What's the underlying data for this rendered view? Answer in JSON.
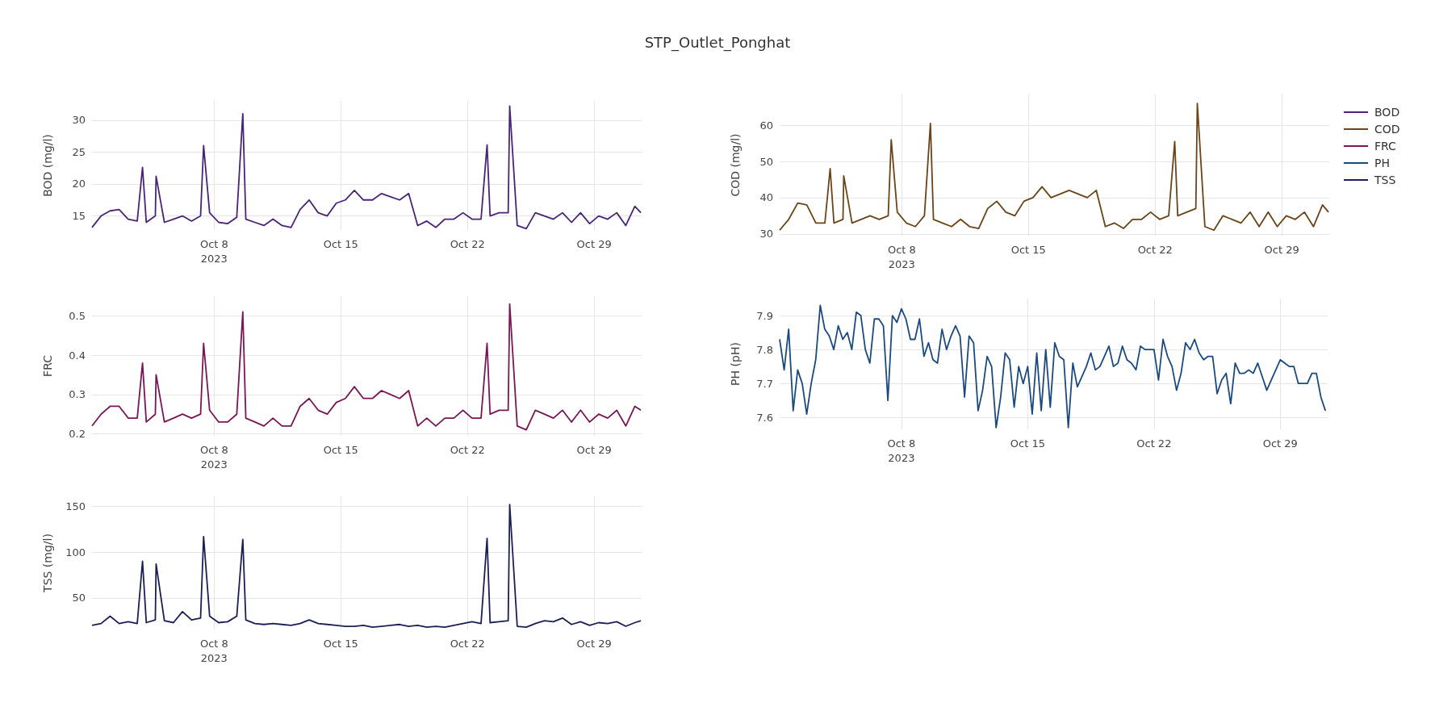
{
  "chart_data": [
    {
      "type": "line",
      "title": "STP_Outlet_Ponghat",
      "ylabel": "BOD (mg/l)",
      "grid": true,
      "legend": "right",
      "marker": "none",
      "x": [
        "2023-10-01T06:00",
        "2023-10-01T18:00",
        "2023-10-02T06:00",
        "2023-10-02T18:00",
        "2023-10-03T06:00",
        "2023-10-03T18:00",
        "2023-10-04T01:00",
        "2023-10-04T06:00",
        "2023-10-04T18:00",
        "2023-10-04T19:00",
        "2023-10-05T06:00",
        "2023-10-05T18:00",
        "2023-10-06T06:00",
        "2023-10-06T18:00",
        "2023-10-07T06:00",
        "2023-10-07T10:00",
        "2023-10-07T18:00",
        "2023-10-08T06:00",
        "2023-10-08T18:00",
        "2023-10-09T06:00",
        "2023-10-09T14:00",
        "2023-10-09T18:00",
        "2023-10-10T06:00",
        "2023-10-10T18:00",
        "2023-10-11T06:00",
        "2023-10-11T18:00",
        "2023-10-12T06:00",
        "2023-10-12T18:00",
        "2023-10-13T06:00",
        "2023-10-13T18:00",
        "2023-10-14T06:00",
        "2023-10-14T18:00",
        "2023-10-15T06:00",
        "2023-10-15T18:00",
        "2023-10-16T06:00",
        "2023-10-16T18:00",
        "2023-10-17T06:00",
        "2023-10-17T18:00",
        "2023-10-18T06:00",
        "2023-10-18T18:00",
        "2023-10-19T06:00",
        "2023-10-19T18:00",
        "2023-10-20T06:00",
        "2023-10-20T18:00",
        "2023-10-21T06:00",
        "2023-10-21T18:00",
        "2023-10-22T06:00",
        "2023-10-22T18:00",
        "2023-10-23T02:00",
        "2023-10-23T06:00",
        "2023-10-23T18:00",
        "2023-10-24T06:00",
        "2023-10-24T08:00",
        "2023-10-24T18:00",
        "2023-10-25T06:00",
        "2023-10-25T18:00",
        "2023-10-26T06:00",
        "2023-10-26T18:00",
        "2023-10-27T06:00",
        "2023-10-27T18:00",
        "2023-10-28T06:00",
        "2023-10-28T18:00",
        "2023-10-29T06:00",
        "2023-10-29T18:00",
        "2023-10-30T06:00",
        "2023-10-30T18:00",
        "2023-10-31T06:00",
        "2023-10-31T14:00"
      ],
      "xlim": [
        "2023-10-01T06:00",
        "2023-10-31T15:00"
      ],
      "xticks": [
        {
          "value": "2023-10-08",
          "label": "Oct 8\n2023"
        },
        {
          "value": "2023-10-15",
          "label": "Oct 15"
        },
        {
          "value": "2023-10-22",
          "label": "Oct 22"
        },
        {
          "value": "2023-10-29",
          "label": "Oct 29"
        }
      ],
      "ylim": [
        12.8,
        33
      ],
      "yticks": [
        15,
        20,
        25,
        30
      ],
      "series": [
        {
          "name": "BOD",
          "color": "#4a2478",
          "values": [
            13.2,
            15.0,
            15.8,
            16.0,
            14.5,
            14.2,
            22.6,
            14.0,
            15.0,
            21.2,
            14.0,
            14.5,
            15.0,
            14.2,
            15.0,
            26.0,
            15.5,
            14.0,
            13.8,
            14.8,
            31.0,
            14.5,
            14.0,
            13.5,
            14.5,
            13.5,
            13.2,
            16.0,
            17.5,
            15.5,
            15.0,
            17.0,
            17.5,
            19.0,
            17.5,
            17.5,
            18.5,
            18.0,
            17.5,
            18.5,
            13.5,
            14.2,
            13.2,
            14.5,
            14.5,
            15.5,
            14.5,
            14.5,
            26.1,
            15.0,
            15.5,
            15.5,
            32.2,
            13.5,
            13.0,
            15.5,
            15.0,
            14.5,
            15.5,
            14.0,
            15.5,
            13.8,
            15.0,
            14.5,
            15.5,
            13.5,
            16.5,
            15.5
          ]
        }
      ]
    },
    {
      "type": "line",
      "ylabel": "COD (mg/l)",
      "grid": true,
      "legend": "right",
      "marker": "none",
      "x": [
        "2023-10-01T06:00",
        "2023-10-01T18:00",
        "2023-10-02T06:00",
        "2023-10-02T18:00",
        "2023-10-03T06:00",
        "2023-10-03T18:00",
        "2023-10-04T01:00",
        "2023-10-04T06:00",
        "2023-10-04T18:00",
        "2023-10-04T19:00",
        "2023-10-05T06:00",
        "2023-10-05T18:00",
        "2023-10-06T06:00",
        "2023-10-06T18:00",
        "2023-10-07T06:00",
        "2023-10-07T10:00",
        "2023-10-07T18:00",
        "2023-10-08T06:00",
        "2023-10-08T18:00",
        "2023-10-09T06:00",
        "2023-10-09T14:00",
        "2023-10-09T18:00",
        "2023-10-10T06:00",
        "2023-10-10T18:00",
        "2023-10-11T06:00",
        "2023-10-11T18:00",
        "2023-10-12T06:00",
        "2023-10-12T18:00",
        "2023-10-13T06:00",
        "2023-10-13T18:00",
        "2023-10-14T06:00",
        "2023-10-14T18:00",
        "2023-10-15T06:00",
        "2023-10-15T18:00",
        "2023-10-16T06:00",
        "2023-10-16T18:00",
        "2023-10-17T06:00",
        "2023-10-17T18:00",
        "2023-10-18T06:00",
        "2023-10-18T18:00",
        "2023-10-19T06:00",
        "2023-10-19T18:00",
        "2023-10-20T06:00",
        "2023-10-20T18:00",
        "2023-10-21T06:00",
        "2023-10-21T18:00",
        "2023-10-22T06:00",
        "2023-10-22T18:00",
        "2023-10-23T02:00",
        "2023-10-23T06:00",
        "2023-10-23T18:00",
        "2023-10-24T06:00",
        "2023-10-24T08:00",
        "2023-10-24T18:00",
        "2023-10-25T06:00",
        "2023-10-25T18:00",
        "2023-10-26T06:00",
        "2023-10-26T18:00",
        "2023-10-27T06:00",
        "2023-10-27T18:00",
        "2023-10-28T06:00",
        "2023-10-28T18:00",
        "2023-10-29T06:00",
        "2023-10-29T18:00",
        "2023-10-30T06:00",
        "2023-10-30T18:00",
        "2023-10-31T06:00",
        "2023-10-31T14:00"
      ],
      "xlim": [
        "2023-10-01T06:00",
        "2023-10-31T15:00"
      ],
      "xticks": [
        {
          "value": "2023-10-08",
          "label": "Oct 8\n2023"
        },
        {
          "value": "2023-10-15",
          "label": "Oct 15"
        },
        {
          "value": "2023-10-22",
          "label": "Oct 22"
        },
        {
          "value": "2023-10-29",
          "label": "Oct 29"
        }
      ],
      "ylim": [
        29.5,
        68.5
      ],
      "yticks": [
        30,
        40,
        50,
        60
      ],
      "series": [
        {
          "name": "COD",
          "color": "#6b4418",
          "values": [
            31,
            34,
            38.5,
            38,
            33,
            33,
            48,
            33,
            34,
            46,
            33,
            34,
            35,
            34,
            35,
            56,
            36,
            33,
            32,
            35,
            60.5,
            34,
            33,
            32,
            34,
            32,
            31.5,
            37,
            39,
            36,
            35,
            39,
            40,
            43,
            40,
            41,
            42,
            41,
            40,
            42,
            32,
            33,
            31.5,
            34,
            34,
            36,
            34,
            35,
            55.5,
            35,
            36,
            37,
            66,
            32,
            31,
            35,
            34,
            33,
            36,
            32,
            36,
            32,
            35,
            34,
            36,
            32,
            38,
            36
          ]
        }
      ]
    },
    {
      "type": "line",
      "ylabel": "FRC",
      "grid": true,
      "legend": "right",
      "marker": "none",
      "x": [
        "2023-10-01T06:00",
        "2023-10-01T18:00",
        "2023-10-02T06:00",
        "2023-10-02T18:00",
        "2023-10-03T06:00",
        "2023-10-03T18:00",
        "2023-10-04T01:00",
        "2023-10-04T06:00",
        "2023-10-04T18:00",
        "2023-10-04T19:00",
        "2023-10-05T06:00",
        "2023-10-05T18:00",
        "2023-10-06T06:00",
        "2023-10-06T18:00",
        "2023-10-07T06:00",
        "2023-10-07T10:00",
        "2023-10-07T18:00",
        "2023-10-08T06:00",
        "2023-10-08T18:00",
        "2023-10-09T06:00",
        "2023-10-09T14:00",
        "2023-10-09T18:00",
        "2023-10-10T06:00",
        "2023-10-10T18:00",
        "2023-10-11T06:00",
        "2023-10-11T18:00",
        "2023-10-12T06:00",
        "2023-10-12T18:00",
        "2023-10-13T06:00",
        "2023-10-13T18:00",
        "2023-10-14T06:00",
        "2023-10-14T18:00",
        "2023-10-15T06:00",
        "2023-10-15T18:00",
        "2023-10-16T06:00",
        "2023-10-16T18:00",
        "2023-10-17T06:00",
        "2023-10-17T18:00",
        "2023-10-18T06:00",
        "2023-10-18T18:00",
        "2023-10-19T06:00",
        "2023-10-19T18:00",
        "2023-10-20T06:00",
        "2023-10-20T18:00",
        "2023-10-21T06:00",
        "2023-10-21T18:00",
        "2023-10-22T06:00",
        "2023-10-22T18:00",
        "2023-10-23T02:00",
        "2023-10-23T06:00",
        "2023-10-23T18:00",
        "2023-10-24T06:00",
        "2023-10-24T08:00",
        "2023-10-24T18:00",
        "2023-10-25T06:00",
        "2023-10-25T18:00",
        "2023-10-26T06:00",
        "2023-10-26T18:00",
        "2023-10-27T06:00",
        "2023-10-27T18:00",
        "2023-10-28T06:00",
        "2023-10-28T18:00",
        "2023-10-29T06:00",
        "2023-10-29T18:00",
        "2023-10-30T06:00",
        "2023-10-30T18:00",
        "2023-10-31T06:00",
        "2023-10-31T14:00"
      ],
      "xlim": [
        "2023-10-01T06:00",
        "2023-10-31T15:00"
      ],
      "xticks": [
        {
          "value": "2023-10-08",
          "label": "Oct 8\n2023"
        },
        {
          "value": "2023-10-15",
          "label": "Oct 15"
        },
        {
          "value": "2023-10-22",
          "label": "Oct 22"
        },
        {
          "value": "2023-10-29",
          "label": "Oct 29"
        }
      ],
      "ylim": [
        0.195,
        0.55
      ],
      "yticks": [
        0.2,
        0.3,
        0.4,
        0.5
      ],
      "series": [
        {
          "name": "FRC",
          "color": "#7a1656",
          "values": [
            0.22,
            0.25,
            0.27,
            0.27,
            0.24,
            0.24,
            0.38,
            0.23,
            0.25,
            0.35,
            0.23,
            0.24,
            0.25,
            0.24,
            0.25,
            0.43,
            0.26,
            0.23,
            0.23,
            0.25,
            0.51,
            0.24,
            0.23,
            0.22,
            0.24,
            0.22,
            0.22,
            0.27,
            0.29,
            0.26,
            0.25,
            0.28,
            0.29,
            0.32,
            0.29,
            0.29,
            0.31,
            0.3,
            0.29,
            0.31,
            0.22,
            0.24,
            0.22,
            0.24,
            0.24,
            0.26,
            0.24,
            0.24,
            0.43,
            0.25,
            0.26,
            0.26,
            0.53,
            0.22,
            0.21,
            0.26,
            0.25,
            0.24,
            0.26,
            0.23,
            0.26,
            0.23,
            0.25,
            0.24,
            0.26,
            0.22,
            0.27,
            0.26
          ]
        }
      ]
    },
    {
      "type": "line",
      "ylabel": "PH (pH)",
      "grid": true,
      "legend": "right",
      "marker": "none",
      "x": [
        "2023-10-01T06:00",
        "2023-10-01T12:00",
        "2023-10-01T18:00",
        "2023-10-02T00:00",
        "2023-10-02T06:00",
        "2023-10-02T12:00",
        "2023-10-02T18:00",
        "2023-10-03T00:00",
        "2023-10-03T06:00",
        "2023-10-03T12:00",
        "2023-10-03T18:00",
        "2023-10-04T00:00",
        "2023-10-04T06:00",
        "2023-10-04T12:00",
        "2023-10-04T18:00",
        "2023-10-05T00:00",
        "2023-10-05T06:00",
        "2023-10-05T12:00",
        "2023-10-05T18:00",
        "2023-10-06T00:00",
        "2023-10-06T06:00",
        "2023-10-06T12:00",
        "2023-10-06T18:00",
        "2023-10-07T00:00",
        "2023-10-07T06:00",
        "2023-10-07T12:00",
        "2023-10-07T18:00",
        "2023-10-08T00:00",
        "2023-10-08T06:00",
        "2023-10-08T12:00",
        "2023-10-08T18:00",
        "2023-10-09T00:00",
        "2023-10-09T06:00",
        "2023-10-09T12:00",
        "2023-10-09T18:00",
        "2023-10-10T00:00",
        "2023-10-10T06:00",
        "2023-10-10T12:00",
        "2023-10-10T18:00",
        "2023-10-11T00:00",
        "2023-10-11T06:00",
        "2023-10-11T12:00",
        "2023-10-11T18:00",
        "2023-10-12T00:00",
        "2023-10-12T06:00",
        "2023-10-12T12:00",
        "2023-10-12T18:00",
        "2023-10-13T00:00",
        "2023-10-13T06:00",
        "2023-10-13T12:00",
        "2023-10-13T18:00",
        "2023-10-14T00:00",
        "2023-10-14T06:00",
        "2023-10-14T12:00",
        "2023-10-14T18:00",
        "2023-10-15T00:00",
        "2023-10-15T06:00",
        "2023-10-15T12:00",
        "2023-10-15T18:00",
        "2023-10-16T00:00",
        "2023-10-16T06:00",
        "2023-10-16T12:00",
        "2023-10-16T18:00",
        "2023-10-17T00:00",
        "2023-10-17T06:00",
        "2023-10-17T12:00",
        "2023-10-17T18:00",
        "2023-10-18T00:00",
        "2023-10-18T06:00",
        "2023-10-18T12:00",
        "2023-10-18T18:00",
        "2023-10-19T00:00",
        "2023-10-19T06:00",
        "2023-10-19T12:00",
        "2023-10-19T18:00",
        "2023-10-20T00:00",
        "2023-10-20T06:00",
        "2023-10-20T12:00",
        "2023-10-20T18:00",
        "2023-10-21T00:00",
        "2023-10-21T06:00",
        "2023-10-21T12:00",
        "2023-10-21T18:00",
        "2023-10-22T00:00",
        "2023-10-22T06:00",
        "2023-10-22T12:00",
        "2023-10-22T18:00",
        "2023-10-23T00:00",
        "2023-10-23T06:00",
        "2023-10-23T12:00",
        "2023-10-23T18:00",
        "2023-10-24T00:00",
        "2023-10-24T06:00",
        "2023-10-24T12:00",
        "2023-10-24T18:00",
        "2023-10-25T00:00",
        "2023-10-25T06:00",
        "2023-10-25T12:00",
        "2023-10-25T18:00",
        "2023-10-26T00:00",
        "2023-10-26T06:00",
        "2023-10-26T12:00",
        "2023-10-26T18:00",
        "2023-10-27T00:00",
        "2023-10-27T06:00",
        "2023-10-27T12:00",
        "2023-10-27T18:00",
        "2023-10-28T00:00",
        "2023-10-28T06:00",
        "2023-10-28T12:00",
        "2023-10-28T18:00",
        "2023-10-29T00:00",
        "2023-10-29T06:00",
        "2023-10-29T12:00",
        "2023-10-29T18:00",
        "2023-10-30T00:00",
        "2023-10-30T06:00",
        "2023-10-30T12:00",
        "2023-10-30T18:00",
        "2023-10-31T00:00",
        "2023-10-31T06:00",
        "2023-10-31T12:00"
      ],
      "xlim": [
        "2023-10-01T06:00",
        "2023-10-31T15:00"
      ],
      "xticks": [
        {
          "value": "2023-10-08",
          "label": "Oct 8\n2023"
        },
        {
          "value": "2023-10-15",
          "label": "Oct 15"
        },
        {
          "value": "2023-10-22",
          "label": "Oct 22"
        },
        {
          "value": "2023-10-29",
          "label": "Oct 29"
        }
      ],
      "ylim": [
        7.565,
        7.95
      ],
      "yticks": [
        7.6,
        7.7,
        7.8,
        7.9
      ],
      "series": [
        {
          "name": "PH",
          "color": "#1b4a80",
          "values": [
            7.83,
            7.74,
            7.86,
            7.62,
            7.74,
            7.7,
            7.61,
            7.7,
            7.77,
            7.93,
            7.86,
            7.84,
            7.8,
            7.87,
            7.83,
            7.85,
            7.8,
            7.91,
            7.9,
            7.8,
            7.76,
            7.89,
            7.89,
            7.87,
            7.65,
            7.9,
            7.88,
            7.92,
            7.89,
            7.83,
            7.83,
            7.89,
            7.78,
            7.82,
            7.77,
            7.76,
            7.86,
            7.8,
            7.84,
            7.87,
            7.84,
            7.66,
            7.84,
            7.82,
            7.62,
            7.68,
            7.78,
            7.75,
            7.57,
            7.66,
            7.79,
            7.77,
            7.63,
            7.75,
            7.7,
            7.75,
            7.61,
            7.79,
            7.62,
            7.8,
            7.63,
            7.82,
            7.78,
            7.77,
            7.57,
            7.76,
            7.69,
            7.72,
            7.75,
            7.79,
            7.74,
            7.75,
            7.78,
            7.81,
            7.75,
            7.76,
            7.81,
            7.77,
            7.76,
            7.74,
            7.81,
            7.8,
            7.8,
            7.8,
            7.71,
            7.83,
            7.78,
            7.75,
            7.68,
            7.73,
            7.82,
            7.8,
            7.83,
            7.79,
            7.77,
            7.78,
            7.78,
            7.67,
            7.71,
            7.73,
            7.64,
            7.76,
            7.73,
            7.73,
            7.74,
            7.73,
            7.76,
            7.72,
            7.68,
            7.71,
            7.74,
            7.77,
            7.76,
            7.75,
            7.75,
            7.7,
            7.7,
            7.7,
            7.73,
            7.73,
            7.66,
            7.62
          ]
        }
      ]
    },
    {
      "type": "line",
      "ylabel": "TSS (mg/l)",
      "grid": true,
      "legend": "right",
      "marker": "none",
      "x": [
        "2023-10-01T06:00",
        "2023-10-01T18:00",
        "2023-10-02T06:00",
        "2023-10-02T18:00",
        "2023-10-03T06:00",
        "2023-10-03T18:00",
        "2023-10-04T01:00",
        "2023-10-04T06:00",
        "2023-10-04T18:00",
        "2023-10-04T19:00",
        "2023-10-05T06:00",
        "2023-10-05T18:00",
        "2023-10-06T06:00",
        "2023-10-06T18:00",
        "2023-10-07T06:00",
        "2023-10-07T10:00",
        "2023-10-07T18:00",
        "2023-10-08T06:00",
        "2023-10-08T18:00",
        "2023-10-09T06:00",
        "2023-10-09T14:00",
        "2023-10-09T18:00",
        "2023-10-10T06:00",
        "2023-10-10T18:00",
        "2023-10-11T06:00",
        "2023-10-11T18:00",
        "2023-10-12T06:00",
        "2023-10-12T18:00",
        "2023-10-13T06:00",
        "2023-10-13T18:00",
        "2023-10-14T06:00",
        "2023-10-14T18:00",
        "2023-10-15T06:00",
        "2023-10-15T18:00",
        "2023-10-16T06:00",
        "2023-10-16T18:00",
        "2023-10-17T06:00",
        "2023-10-17T18:00",
        "2023-10-18T06:00",
        "2023-10-18T18:00",
        "2023-10-19T06:00",
        "2023-10-19T18:00",
        "2023-10-20T06:00",
        "2023-10-20T18:00",
        "2023-10-21T06:00",
        "2023-10-21T18:00",
        "2023-10-22T06:00",
        "2023-10-22T18:00",
        "2023-10-23T02:00",
        "2023-10-23T06:00",
        "2023-10-23T18:00",
        "2023-10-24T06:00",
        "2023-10-24T08:00",
        "2023-10-24T18:00",
        "2023-10-25T06:00",
        "2023-10-25T18:00",
        "2023-10-26T06:00",
        "2023-10-26T18:00",
        "2023-10-27T06:00",
        "2023-10-27T18:00",
        "2023-10-28T06:00",
        "2023-10-28T18:00",
        "2023-10-29T06:00",
        "2023-10-29T18:00",
        "2023-10-30T06:00",
        "2023-10-30T18:00",
        "2023-10-31T06:00",
        "2023-10-31T14:00"
      ],
      "xlim": [
        "2023-10-01T06:00",
        "2023-10-31T15:00"
      ],
      "xticks": [
        {
          "value": "2023-10-08",
          "label": "Oct 8\n2023"
        },
        {
          "value": "2023-10-15",
          "label": "Oct 15"
        },
        {
          "value": "2023-10-22",
          "label": "Oct 22"
        },
        {
          "value": "2023-10-29",
          "label": "Oct 29"
        }
      ],
      "ylim": [
        15.5,
        161
      ],
      "yticks": [
        50,
        100,
        150
      ],
      "series": [
        {
          "name": "TSS",
          "color": "#1c1f55",
          "values": [
            20,
            22,
            30,
            22,
            24,
            22,
            90,
            23,
            26,
            87,
            25,
            23,
            35,
            26,
            28,
            117,
            30,
            23,
            24,
            30,
            114,
            26,
            22,
            21,
            22,
            21,
            20,
            22,
            26,
            22,
            21,
            20,
            19,
            19,
            20,
            18,
            19,
            20,
            21,
            19,
            20,
            18,
            19,
            18,
            20,
            22,
            24,
            22,
            115,
            23,
            24,
            25,
            152,
            19,
            18,
            22,
            25,
            24,
            28,
            21,
            24,
            20,
            23,
            22,
            24,
            19,
            23,
            25
          ]
        }
      ]
    }
  ]
}
